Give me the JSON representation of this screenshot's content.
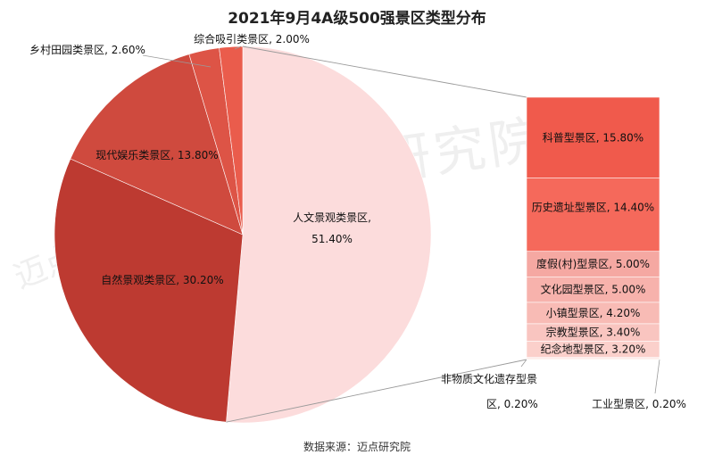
{
  "chart_data": {
    "type": "pie",
    "title": "2021年9月4A级500强景区类型分布",
    "pie": {
      "slices": [
        {
          "label": "人文景观类景区",
          "value": 51.4,
          "display": "51.40%",
          "color": "#fcdcdc"
        },
        {
          "label": "自然景观类景区",
          "value": 30.2,
          "display": "30.20%",
          "color": "#bd3a31"
        },
        {
          "label": "现代娱乐类景区",
          "value": 13.8,
          "display": "13.80%",
          "color": "#cf4a3e"
        },
        {
          "label": "乡村田园类景区",
          "value": 2.6,
          "display": "2.60%",
          "color": "#dd5446"
        },
        {
          "label": "综合吸引类景区",
          "value": 2.0,
          "display": "2.00%",
          "color": "#ea5c4c"
        }
      ],
      "exploded_slice": "人文景观类景区"
    },
    "breakdown_bar": {
      "segments": [
        {
          "label": "科普型景区",
          "value": 15.8,
          "display": "15.80%",
          "color": "#f05a4c"
        },
        {
          "label": "历史遗址型景区",
          "value": 14.4,
          "display": "14.40%",
          "color": "#f5695b"
        },
        {
          "label": "度假(村)型景区",
          "value": 5.0,
          "display": "5.00%",
          "color": "#f5a8a2"
        },
        {
          "label": "文化园型景区",
          "value": 5.0,
          "display": "5.00%",
          "color": "#f7b2ac"
        },
        {
          "label": "小镇型景区",
          "value": 4.2,
          "display": "4.20%",
          "color": "#f8bbb5"
        },
        {
          "label": "宗教型景区",
          "value": 3.4,
          "display": "3.40%",
          "color": "#f9c5c0"
        },
        {
          "label": "纪念地型景区",
          "value": 3.2,
          "display": "3.20%",
          "color": "#fbd0cb"
        },
        {
          "label": "非物质文化遗存型景区",
          "value": 0.2,
          "display": "0.20%",
          "color": "#fcdcd8"
        },
        {
          "label": "工业型景区",
          "value": 0.2,
          "display": "0.20%",
          "color": "#fde6e2"
        }
      ]
    }
  },
  "source_note": "数据来源：迈点研究院",
  "watermark": "迈点研究院"
}
